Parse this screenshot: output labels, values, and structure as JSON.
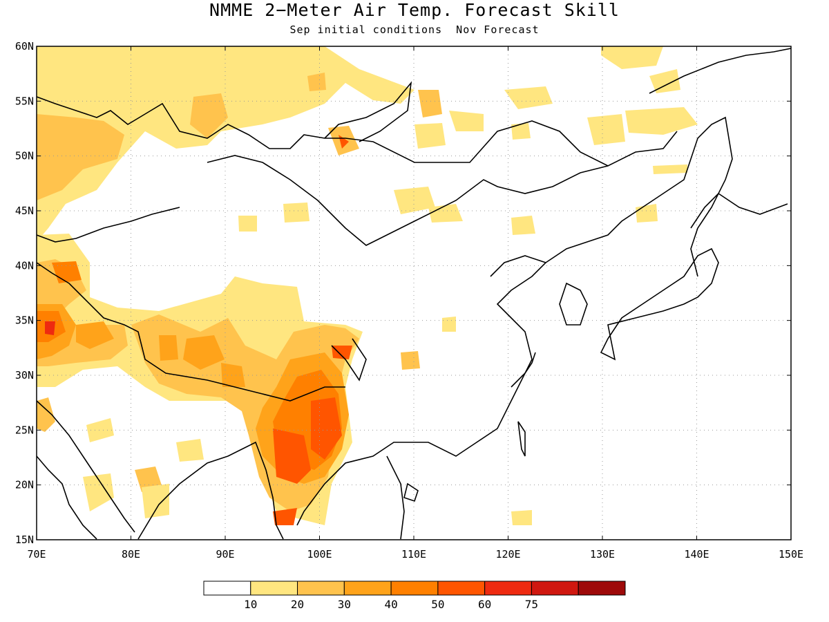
{
  "title": "NMME 2−Meter Air Temp. Forecast Skill",
  "subtitle": "Sep initial conditions  Nov Forecast",
  "map": {
    "projection": "lat-lon",
    "lon_range": [
      70,
      150
    ],
    "lat_range": [
      15,
      60
    ],
    "grid": "dotted",
    "lon_ticks": [
      {
        "value": 70,
        "label": "70E"
      },
      {
        "value": 80,
        "label": "80E"
      },
      {
        "value": 90,
        "label": "90E"
      },
      {
        "value": 100,
        "label": "100E"
      },
      {
        "value": 110,
        "label": "110E"
      },
      {
        "value": 120,
        "label": "120E"
      },
      {
        "value": 130,
        "label": "130E"
      },
      {
        "value": 140,
        "label": "140E"
      },
      {
        "value": 150,
        "label": "150E"
      }
    ],
    "lat_ticks": [
      {
        "value": 15,
        "label": "15N"
      },
      {
        "value": 20,
        "label": "20N"
      },
      {
        "value": 25,
        "label": "25N"
      },
      {
        "value": 30,
        "label": "30N"
      },
      {
        "value": 35,
        "label": "35N"
      },
      {
        "value": 40,
        "label": "40N"
      },
      {
        "value": 45,
        "label": "45N"
      },
      {
        "value": 50,
        "label": "50N"
      },
      {
        "value": 55,
        "label": "55N"
      },
      {
        "value": 60,
        "label": "60N"
      }
    ]
  },
  "colorbar": {
    "colors": [
      "#ffffff",
      "#ffe680",
      "#ffc34d",
      "#ffa31a",
      "#ff8000",
      "#ff5500",
      "#ee2a10",
      "#d01810",
      "#9e0a0a"
    ],
    "labels": [
      "10",
      "20",
      "30",
      "40",
      "50",
      "60",
      "75"
    ]
  }
}
